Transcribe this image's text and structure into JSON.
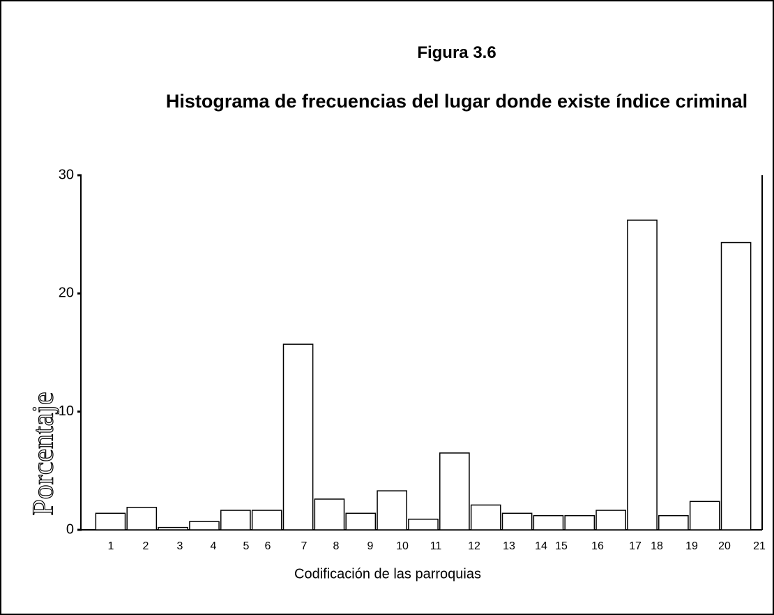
{
  "chart_data": {
    "type": "bar",
    "title": "Figura 3.6",
    "subtitle": "Histograma de frecuencias del lugar donde existe índice criminal",
    "x_label": "Codificación de las parroquias",
    "y_label": "Porcentaje",
    "categories": [
      "1",
      "2",
      "3",
      "4",
      "5",
      "6",
      "7",
      "8",
      "9",
      "10",
      "11",
      "12",
      "13",
      "14",
      "15",
      "16",
      "17",
      "18",
      "19",
      "20",
      "21"
    ],
    "values": [
      1.4,
      1.9,
      0.2,
      0.7,
      1.65,
      1.65,
      15.7,
      2.6,
      1.4,
      3.3,
      0.9,
      6.5,
      2.1,
      1.4,
      1.2,
      1.2,
      1.65,
      26.2,
      1.2,
      2.4,
      24.3
    ],
    "color": "#ffffff",
    "ylim": [
      0,
      30
    ],
    "yticks": [
      0,
      10,
      20,
      30
    ],
    "grid": false
  }
}
